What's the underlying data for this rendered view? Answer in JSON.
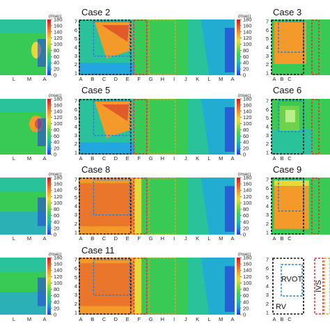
{
  "colorbar": {
    "unit": "(msec)",
    "ticks": [
      "180",
      "160",
      "140",
      "120",
      "100",
      "80",
      "60",
      "40",
      "20",
      "0"
    ],
    "stops": [
      "#2a3bd8",
      "#1f8fe0",
      "#27c29a",
      "#3fcf5a",
      "#8fd83c",
      "#e9dc3a",
      "#f59a2c",
      "#e8552a",
      "#c91e1e"
    ]
  },
  "axis": {
    "columns": [
      "A",
      "B",
      "C",
      "D",
      "E",
      "F",
      "G",
      "H",
      "I",
      "J",
      "K",
      "L",
      "M",
      "A"
    ],
    "rows": [
      "7",
      "6",
      "5",
      "4",
      "3",
      "2",
      "1"
    ],
    "left_partial": [
      "L",
      "M",
      "A"
    ]
  },
  "panels": [
    {
      "title": "Case 2"
    },
    {
      "title": "Case 3"
    },
    {
      "title": "Case 5"
    },
    {
      "title": "Case 6"
    },
    {
      "title": "Case 8"
    },
    {
      "title": "Case 9"
    },
    {
      "title": "Case 11"
    }
  ],
  "legend_regions": {
    "rv": "RV",
    "rvot": "RVOT",
    "ivs": "IVS",
    "colors": {
      "rv": "#111111",
      "rvot": "#2f7fd0",
      "ivs": "#e03030",
      "outflow": "#e0a020"
    }
  }
}
